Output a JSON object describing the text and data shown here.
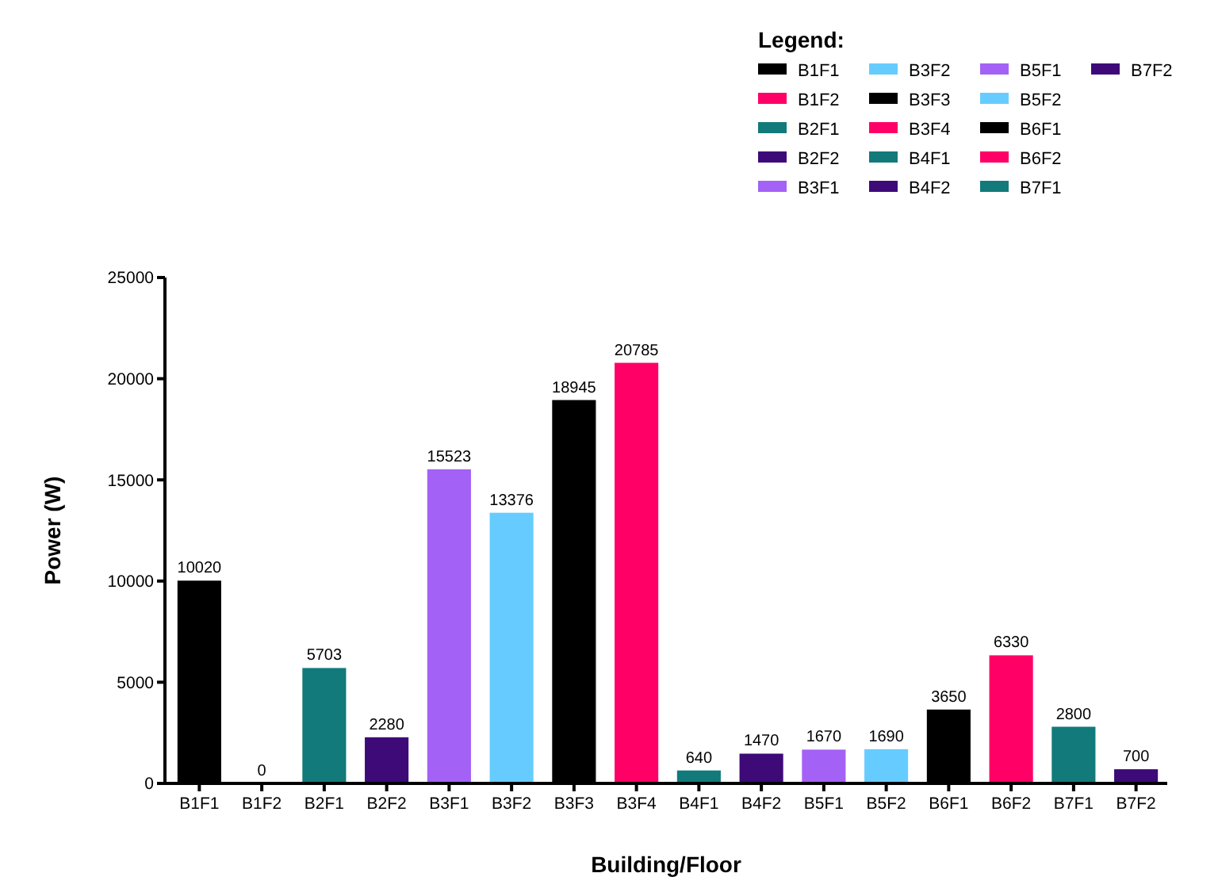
{
  "chart_data": {
    "type": "bar",
    "xlabel": "Building/Floor",
    "ylabel": "Power (W)",
    "legend_title": "Legend:",
    "legend": "top right",
    "categories": [
      "B1F1",
      "B1F2",
      "B2F1",
      "B2F2",
      "B3F1",
      "B3F2",
      "B3F3",
      "B3F4",
      "B4F1",
      "B4F2",
      "B5F1",
      "B5F2",
      "B6F1",
      "B6F2",
      "B7F1",
      "B7F2"
    ],
    "series": [
      {
        "name": "B1F1",
        "color": "#000000",
        "values": [
          10020,
          null,
          null,
          null,
          null,
          null,
          null,
          null,
          null,
          null,
          null,
          null,
          null,
          null,
          null,
          null
        ]
      },
      {
        "name": "B1F2",
        "color": "#ff0066",
        "values": [
          null,
          0,
          null,
          null,
          null,
          null,
          null,
          null,
          null,
          null,
          null,
          null,
          null,
          null,
          null,
          null
        ]
      },
      {
        "name": "B2F1",
        "color": "#127a7a",
        "values": [
          null,
          null,
          5703,
          null,
          null,
          null,
          null,
          null,
          null,
          null,
          null,
          null,
          null,
          null,
          null,
          null
        ]
      },
      {
        "name": "B2F2",
        "color": "#3d0a78",
        "values": [
          null,
          null,
          null,
          2280,
          null,
          null,
          null,
          null,
          null,
          null,
          null,
          null,
          null,
          null,
          null,
          null
        ]
      },
      {
        "name": "B3F1",
        "color": "#a461f5",
        "values": [
          null,
          null,
          null,
          null,
          15523,
          null,
          null,
          null,
          null,
          null,
          null,
          null,
          null,
          null,
          null,
          null
        ]
      },
      {
        "name": "B3F2",
        "color": "#66ccff",
        "values": [
          null,
          null,
          null,
          null,
          null,
          13376,
          null,
          null,
          null,
          null,
          null,
          null,
          null,
          null,
          null,
          null
        ]
      },
      {
        "name": "B3F3",
        "color": "#000000",
        "values": [
          null,
          null,
          null,
          null,
          null,
          null,
          18945,
          null,
          null,
          null,
          null,
          null,
          null,
          null,
          null,
          null
        ]
      },
      {
        "name": "B3F4",
        "color": "#ff0066",
        "values": [
          null,
          null,
          null,
          null,
          null,
          null,
          null,
          20785,
          null,
          null,
          null,
          null,
          null,
          null,
          null,
          null
        ]
      },
      {
        "name": "B4F1",
        "color": "#127a7a",
        "values": [
          null,
          null,
          null,
          null,
          null,
          null,
          null,
          null,
          640,
          null,
          null,
          null,
          null,
          null,
          null,
          null
        ]
      },
      {
        "name": "B4F2",
        "color": "#3d0a78",
        "values": [
          null,
          null,
          null,
          null,
          null,
          null,
          null,
          null,
          null,
          1470,
          null,
          null,
          null,
          null,
          null,
          null
        ]
      },
      {
        "name": "B5F1",
        "color": "#a461f5",
        "values": [
          null,
          null,
          null,
          null,
          null,
          null,
          null,
          null,
          null,
          null,
          1670,
          null,
          null,
          null,
          null,
          null
        ]
      },
      {
        "name": "B5F2",
        "color": "#66ccff",
        "values": [
          null,
          null,
          null,
          null,
          null,
          null,
          null,
          null,
          null,
          null,
          null,
          1690,
          null,
          null,
          null,
          null
        ]
      },
      {
        "name": "B6F1",
        "color": "#000000",
        "values": [
          null,
          null,
          null,
          null,
          null,
          null,
          null,
          null,
          null,
          null,
          null,
          null,
          3650,
          null,
          null,
          null
        ]
      },
      {
        "name": "B6F2",
        "color": "#ff0066",
        "values": [
          null,
          null,
          null,
          null,
          null,
          null,
          null,
          null,
          null,
          null,
          null,
          null,
          null,
          6330,
          null,
          null
        ]
      },
      {
        "name": "B7F1",
        "color": "#127a7a",
        "values": [
          null,
          null,
          null,
          null,
          null,
          null,
          null,
          null,
          null,
          null,
          null,
          null,
          null,
          null,
          2800,
          null
        ]
      },
      {
        "name": "B7F2",
        "color": "#3d0a78",
        "values": [
          null,
          null,
          null,
          null,
          null,
          null,
          null,
          null,
          null,
          null,
          null,
          null,
          null,
          null,
          null,
          700
        ]
      }
    ],
    "ylim": [
      0,
      25000
    ],
    "yticks": [
      0,
      5000,
      10000,
      15000,
      20000,
      25000
    ],
    "data_labels": true,
    "grid": false
  }
}
